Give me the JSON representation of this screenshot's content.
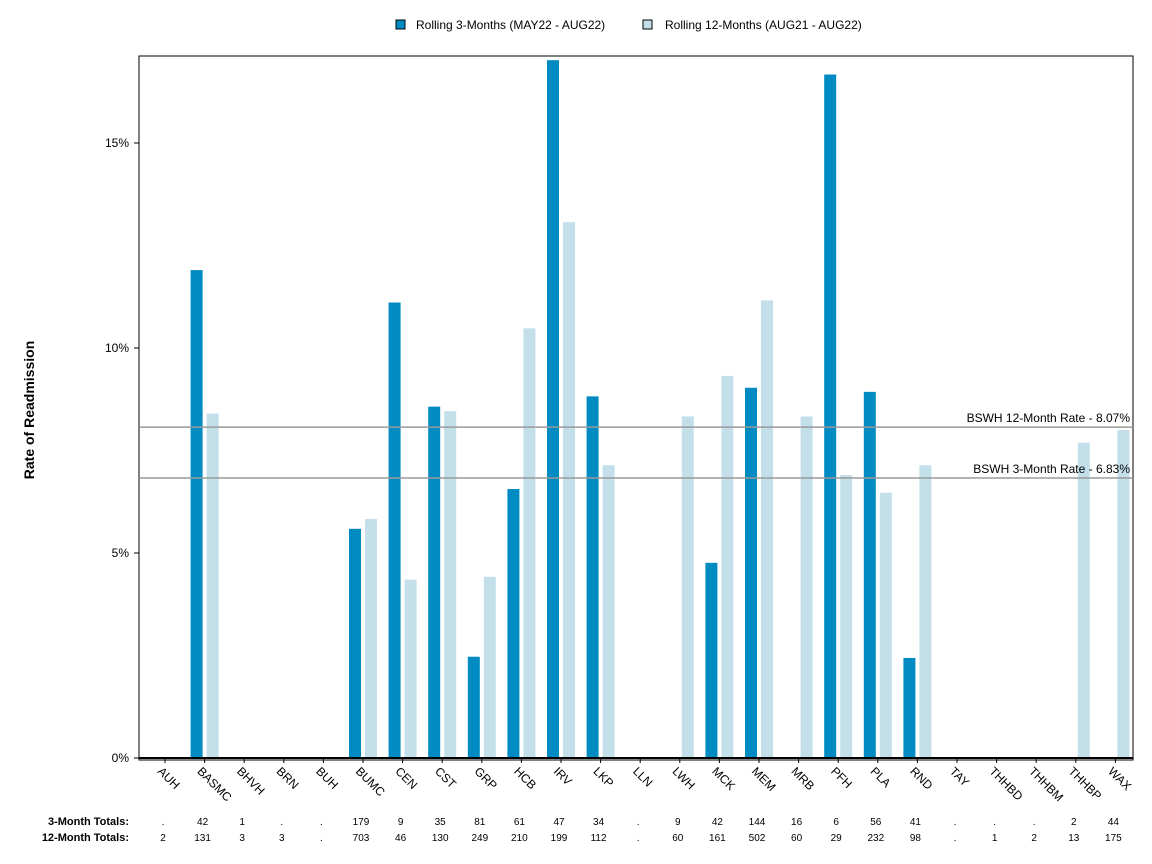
{
  "chart_data": {
    "type": "bar",
    "title": "",
    "xlabel": "",
    "ylabel": "Rate of Readmission",
    "ylim": [
      0,
      17.1
    ],
    "yticks": [
      0,
      5,
      10,
      15
    ],
    "ytick_labels": [
      "0%",
      "5%",
      "10%",
      "15%"
    ],
    "grid": false,
    "legend_position": "top-center",
    "categories": [
      "AUH",
      "BASMC",
      "BHVH",
      "BRN",
      "BUH",
      "BUMC",
      "CEN",
      "CST",
      "GRP",
      "HCB",
      "IRV",
      "LKP",
      "LLN",
      "LWH",
      "MCK",
      "MEM",
      "MRB",
      "PFH",
      "PLA",
      "RND",
      "TAY",
      "THHBD",
      "THHBM",
      "THHBP",
      "WAX"
    ],
    "series": [
      {
        "name": "Rolling 3-Months (MAY22 - AUG22)",
        "color": "#008cc2",
        "values": [
          0,
          11.9,
          0,
          0,
          0,
          5.59,
          11.11,
          8.57,
          2.47,
          6.56,
          17.02,
          8.82,
          0,
          0,
          4.76,
          9.03,
          0,
          16.67,
          8.93,
          2.44,
          0,
          0,
          0,
          0,
          0
        ]
      },
      {
        "name": "Rolling 12-Months (AUG21 - AUG22)",
        "color": "#c2dfea",
        "values": [
          0,
          8.4,
          0,
          0,
          0,
          5.83,
          4.35,
          8.46,
          4.42,
          10.48,
          13.07,
          7.14,
          0,
          8.33,
          9.32,
          11.16,
          8.33,
          6.9,
          6.47,
          7.14,
          0,
          0,
          0,
          7.69,
          8.0
        ]
      }
    ],
    "reference_lines": [
      {
        "label": "BSWH 12-Month Rate - 8.07%",
        "value": 8.07
      },
      {
        "label": "BSWH  3-Month Rate - 6.83%",
        "value": 6.83
      }
    ],
    "totals": {
      "three_month_label": "3-Month Totals:",
      "twelve_month_label": "12-Month Totals:",
      "three_month": [
        ".",
        "42",
        "1",
        ".",
        ".",
        "179",
        "9",
        "35",
        "81",
        "61",
        "47",
        "34",
        ".",
        "9",
        "42",
        "144",
        "16",
        "6",
        "56",
        "41",
        ".",
        ".",
        ".",
        "2",
        "44"
      ],
      "twelve_month": [
        "2",
        "131",
        "3",
        "3",
        ".",
        "703",
        "46",
        "130",
        "249",
        "210",
        "199",
        "112",
        ".",
        "60",
        "161",
        "502",
        "60",
        "29",
        "232",
        "98",
        ".",
        "1",
        "2",
        "13",
        "175"
      ]
    }
  }
}
